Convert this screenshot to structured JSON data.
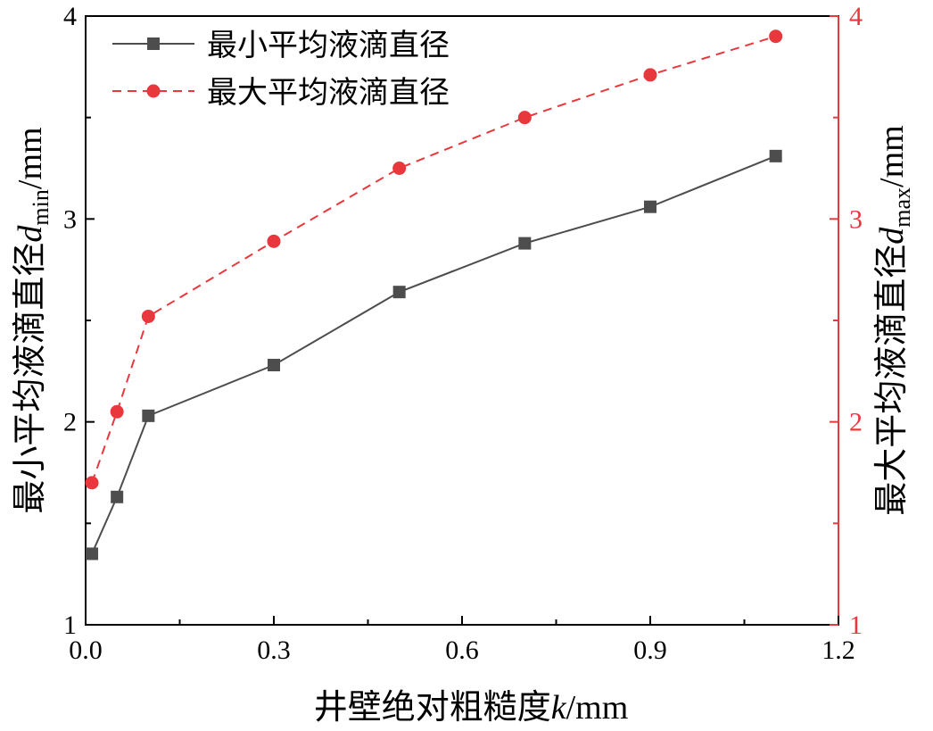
{
  "chart_data": {
    "type": "line",
    "x": [
      0.01,
      0.05,
      0.1,
      0.3,
      0.5,
      0.7,
      0.9,
      1.1
    ],
    "xlim": [
      0.0,
      1.2
    ],
    "ylim_left": [
      1,
      4
    ],
    "ylim_right": [
      1,
      4
    ],
    "x_ticks": [
      "0.0",
      "0.3",
      "0.6",
      "0.9",
      "1.2"
    ],
    "y_ticks_left": [
      "1",
      "2",
      "3",
      "4"
    ],
    "y_ticks_right": [
      "1",
      "2",
      "3",
      "4"
    ],
    "grid": false,
    "legend_position": "top-left",
    "xlabel": {
      "main": "井壁绝对粗糙度",
      "var": "k",
      "unit": "/mm"
    },
    "ylabel_left": {
      "main": "最小平均液滴直径",
      "var": "d",
      "sub": "min",
      "unit": "/mm"
    },
    "ylabel_right": {
      "main": "最大平均液滴直径",
      "var": "d",
      "sub": "max",
      "unit": "/mm"
    },
    "series": [
      {
        "name": "最小平均液滴直径",
        "axis": "left",
        "values": [
          1.35,
          1.63,
          2.03,
          2.28,
          2.64,
          2.88,
          3.06,
          3.31
        ],
        "color": "#4d4d4d",
        "marker": "square",
        "line": "solid"
      },
      {
        "name": "最大平均液滴直径",
        "axis": "right",
        "values": [
          1.7,
          2.05,
          2.52,
          2.89,
          3.25,
          3.5,
          3.71,
          3.9
        ],
        "color": "#e8383d",
        "marker": "circle",
        "line": "dashed"
      }
    ]
  },
  "colors": {
    "axis": "#000000",
    "right_axis": "#e8383d"
  }
}
